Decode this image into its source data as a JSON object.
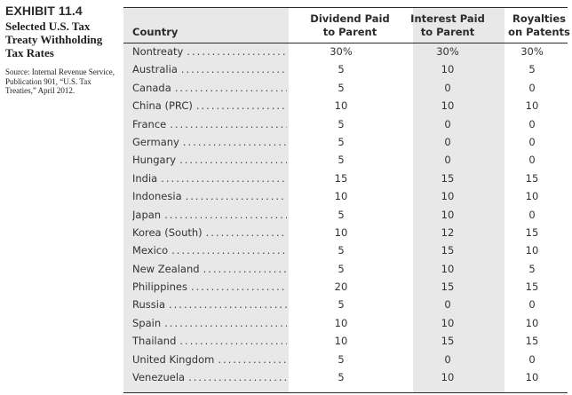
{
  "sidebar": {
    "exhibit_label": "EXHIBIT 11.4",
    "title": "Selected U.S. Tax Treaty Withholding Tax Rates",
    "source": "Source: Internal Revenue Service, Publication 901, “U.S. Tax Treaties,” April 2012."
  },
  "table": {
    "headers": {
      "country": "Country",
      "dividend": "Dividend Paid to Parent",
      "interest": "Interest Paid to Parent",
      "royalties": "Royalties on Patents"
    },
    "rows": [
      {
        "country": "Nontreaty",
        "dividend": "30%",
        "interest": "30%",
        "royalties": "30%"
      },
      {
        "country": "Australia",
        "dividend": "5",
        "interest": "10",
        "royalties": "5"
      },
      {
        "country": "Canada",
        "dividend": "5",
        "interest": "0",
        "royalties": "0"
      },
      {
        "country": "China (PRC)",
        "dividend": "10",
        "interest": "10",
        "royalties": "10"
      },
      {
        "country": "France",
        "dividend": "5",
        "interest": "0",
        "royalties": "0"
      },
      {
        "country": "Germany",
        "dividend": "5",
        "interest": "0",
        "royalties": "0"
      },
      {
        "country": "Hungary",
        "dividend": "5",
        "interest": "0",
        "royalties": "0"
      },
      {
        "country": "India",
        "dividend": "15",
        "interest": "15",
        "royalties": "15"
      },
      {
        "country": "Indonesia",
        "dividend": "10",
        "interest": "10",
        "royalties": "10"
      },
      {
        "country": "Japan",
        "dividend": "5",
        "interest": "10",
        "royalties": "0"
      },
      {
        "country": "Korea (South)",
        "dividend": "10",
        "interest": "12",
        "royalties": "15"
      },
      {
        "country": "Mexico",
        "dividend": "5",
        "interest": "15",
        "royalties": "10"
      },
      {
        "country": "New Zealand",
        "dividend": "5",
        "interest": "10",
        "royalties": "5"
      },
      {
        "country": "Philippines",
        "dividend": "20",
        "interest": "15",
        "royalties": "15"
      },
      {
        "country": "Russia",
        "dividend": "5",
        "interest": "0",
        "royalties": "0"
      },
      {
        "country": "Spain",
        "dividend": "10",
        "interest": "10",
        "royalties": "10"
      },
      {
        "country": "Thailand",
        "dividend": "10",
        "interest": "15",
        "royalties": "15"
      },
      {
        "country": "United Kingdom",
        "dividend": "5",
        "interest": "0",
        "royalties": "0"
      },
      {
        "country": "Venezuela",
        "dividend": "5",
        "interest": "10",
        "royalties": "10"
      }
    ]
  }
}
